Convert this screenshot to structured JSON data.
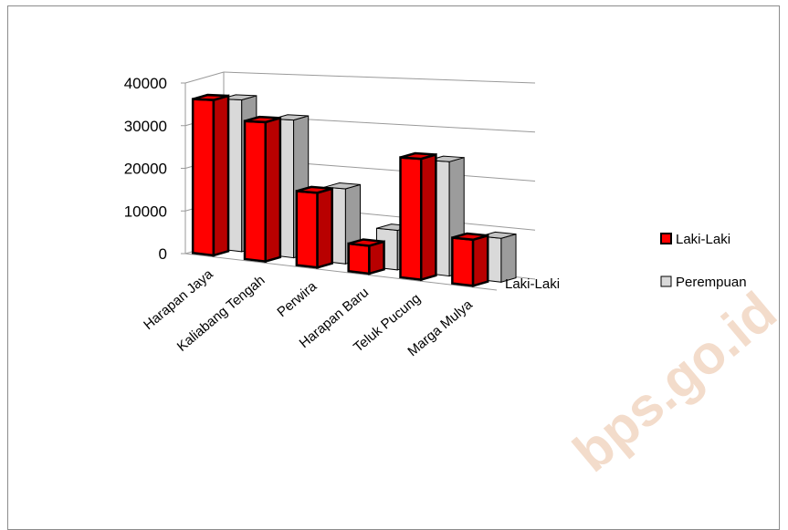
{
  "chart_data": {
    "type": "bar",
    "categories": [
      "Harapan Jaya",
      "Kaliabang Tengah",
      "Perwira",
      "Harapan Baru",
      "Teluk Pucung",
      "Marga Mulya"
    ],
    "series": [
      {
        "name": "Laki-Laki",
        "values": [
          36000,
          31500,
          16500,
          6000,
          25500,
          9500
        ],
        "color": "#ff0000"
      },
      {
        "name": "Perempuan",
        "values": [
          35000,
          31000,
          16500,
          8500,
          24000,
          9000
        ],
        "color": "#d9d9d9"
      }
    ],
    "depth_axis_label": "Laki-Laki",
    "ylim": [
      0,
      40000
    ],
    "yticks": [
      "0",
      "10000",
      "20000",
      "30000",
      "40000"
    ],
    "grid": true,
    "legend_position": "right",
    "watermark": "bps.go.id"
  }
}
